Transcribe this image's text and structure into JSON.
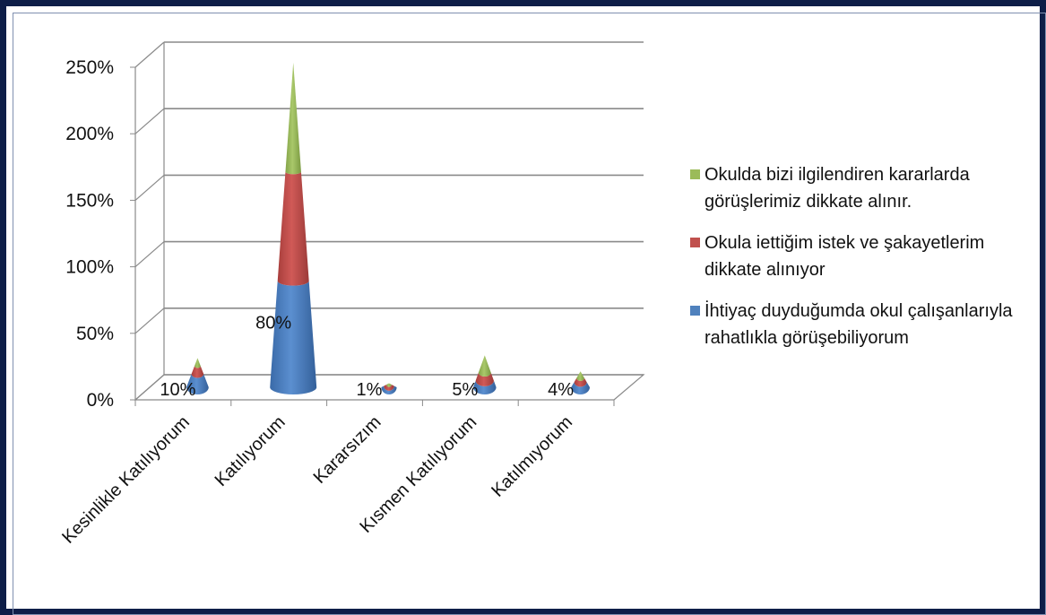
{
  "chart_data": {
    "type": "bar",
    "style": "3d-cone-stacked",
    "categories": [
      "Kesinlikle Katılıyorum",
      "Katılıyorum",
      "Kararsızım",
      "Kısmen Katılıyorum",
      "Katılmıyorum"
    ],
    "yticks": [
      "0%",
      "50%",
      "100%",
      "150%",
      "200%",
      "250%"
    ],
    "ylim": [
      0,
      2.5
    ],
    "grid": true,
    "legend_position": "right",
    "series": [
      {
        "name": "İhtiyaç duyduğumda okul çalışanlarıyla rahatlıkla görüşebiliyorum",
        "color": "#4f81bd",
        "values": [
          0.1,
          0.8,
          0.01,
          0.05,
          0.04
        ],
        "data_labels": [
          "10%",
          "80%",
          "1%",
          "5%",
          "4%"
        ]
      },
      {
        "name": "Okula iettiğim istek ve şakayetlerim dikkate alınıyor",
        "color": "#c0504d",
        "values": [
          0.06,
          0.82,
          0.01,
          0.06,
          0.03
        ]
      },
      {
        "name": "Okulda bizi  ilgilendiren kararlarda görüşlerimiz dikkate alınır.",
        "color": "#9bbb59",
        "values": [
          0.06,
          0.82,
          0.01,
          0.13,
          0.05
        ]
      }
    ]
  },
  "legend": [
    {
      "label": "Okulda bizi  ilgilendiren kararlarda görüşlerimiz dikkate alınır.",
      "color": "#9bbb59"
    },
    {
      "label": "Okula iettiğim istek ve şakayetlerim dikkate alınıyor",
      "color": "#c0504d"
    },
    {
      "label": "İhtiyaç duyduğumda okul çalışanlarıyla rahatlıkla görüşebiliyorum",
      "color": "#4f81bd"
    }
  ]
}
